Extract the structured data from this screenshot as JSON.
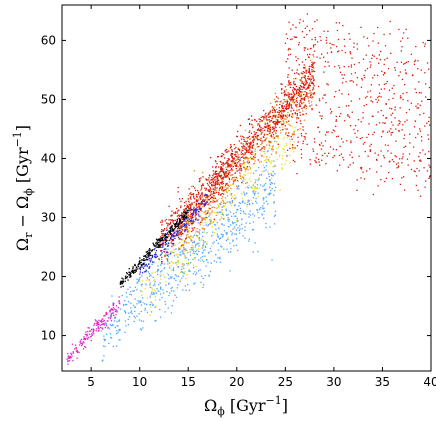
{
  "chart_data": {
    "type": "scatter",
    "title": "",
    "xlabel": "Ω_φ [Gyr⁻¹]",
    "ylabel": "Ω_r − Ω_φ [Gyr⁻¹]",
    "xlim": [
      2,
      40
    ],
    "ylim": [
      4,
      66
    ],
    "x_ticks": [
      "5",
      "10",
      "15",
      "20",
      "25",
      "30",
      "35",
      "40"
    ],
    "y_ticks": [
      "10",
      "20",
      "30",
      "40",
      "50",
      "60"
    ],
    "grid": false,
    "legend": "none",
    "colors": {
      "black": "#000000",
      "blue": "#2a2ad8",
      "magenta": "#e020c8",
      "light_blue": "#4da6ff",
      "yellow": "#e8e020",
      "orange": "#f08a1c",
      "red": "#d81a0c"
    },
    "series": [
      {
        "color": "#000000",
        "region": "thin upper sequence",
        "x_range": [
          8,
          15
        ],
        "y_approx": "1.77*x + 4.5",
        "count": 260
      },
      {
        "color": "#2a2ad8",
        "region": "upper sequence, middle",
        "x_range": [
          10,
          17
        ],
        "y_approx": "1.77*x + 3.2",
        "count": 180
      },
      {
        "color": "#e020c8",
        "region": "lower-left tail",
        "x_range": [
          2.5,
          8
        ],
        "y_approx": "1.75*x + 1.5",
        "count": 160
      },
      {
        "color": "#4da6ff",
        "region": "lower branch",
        "x_range": [
          6,
          24
        ],
        "y_approx": "1.45*x + 1.5",
        "count": 700
      },
      {
        "color": "#e8e020",
        "region": "center of distribution",
        "x_range": [
          10,
          26
        ],
        "y_approx": "1.7*x",
        "count": 300
      },
      {
        "color": "#f08a1c",
        "region": "center-right",
        "x_range": [
          14,
          28
        ],
        "y_approx": "1.85*x + 1",
        "count": 500
      },
      {
        "color": "#d81a0c",
        "region": "upper main band and cloud",
        "x_range": [
          12,
          40
        ],
        "y_approx": "1.8*x + 4 (spreads to 40–64 for x > 25)",
        "count": 1800
      }
    ]
  }
}
